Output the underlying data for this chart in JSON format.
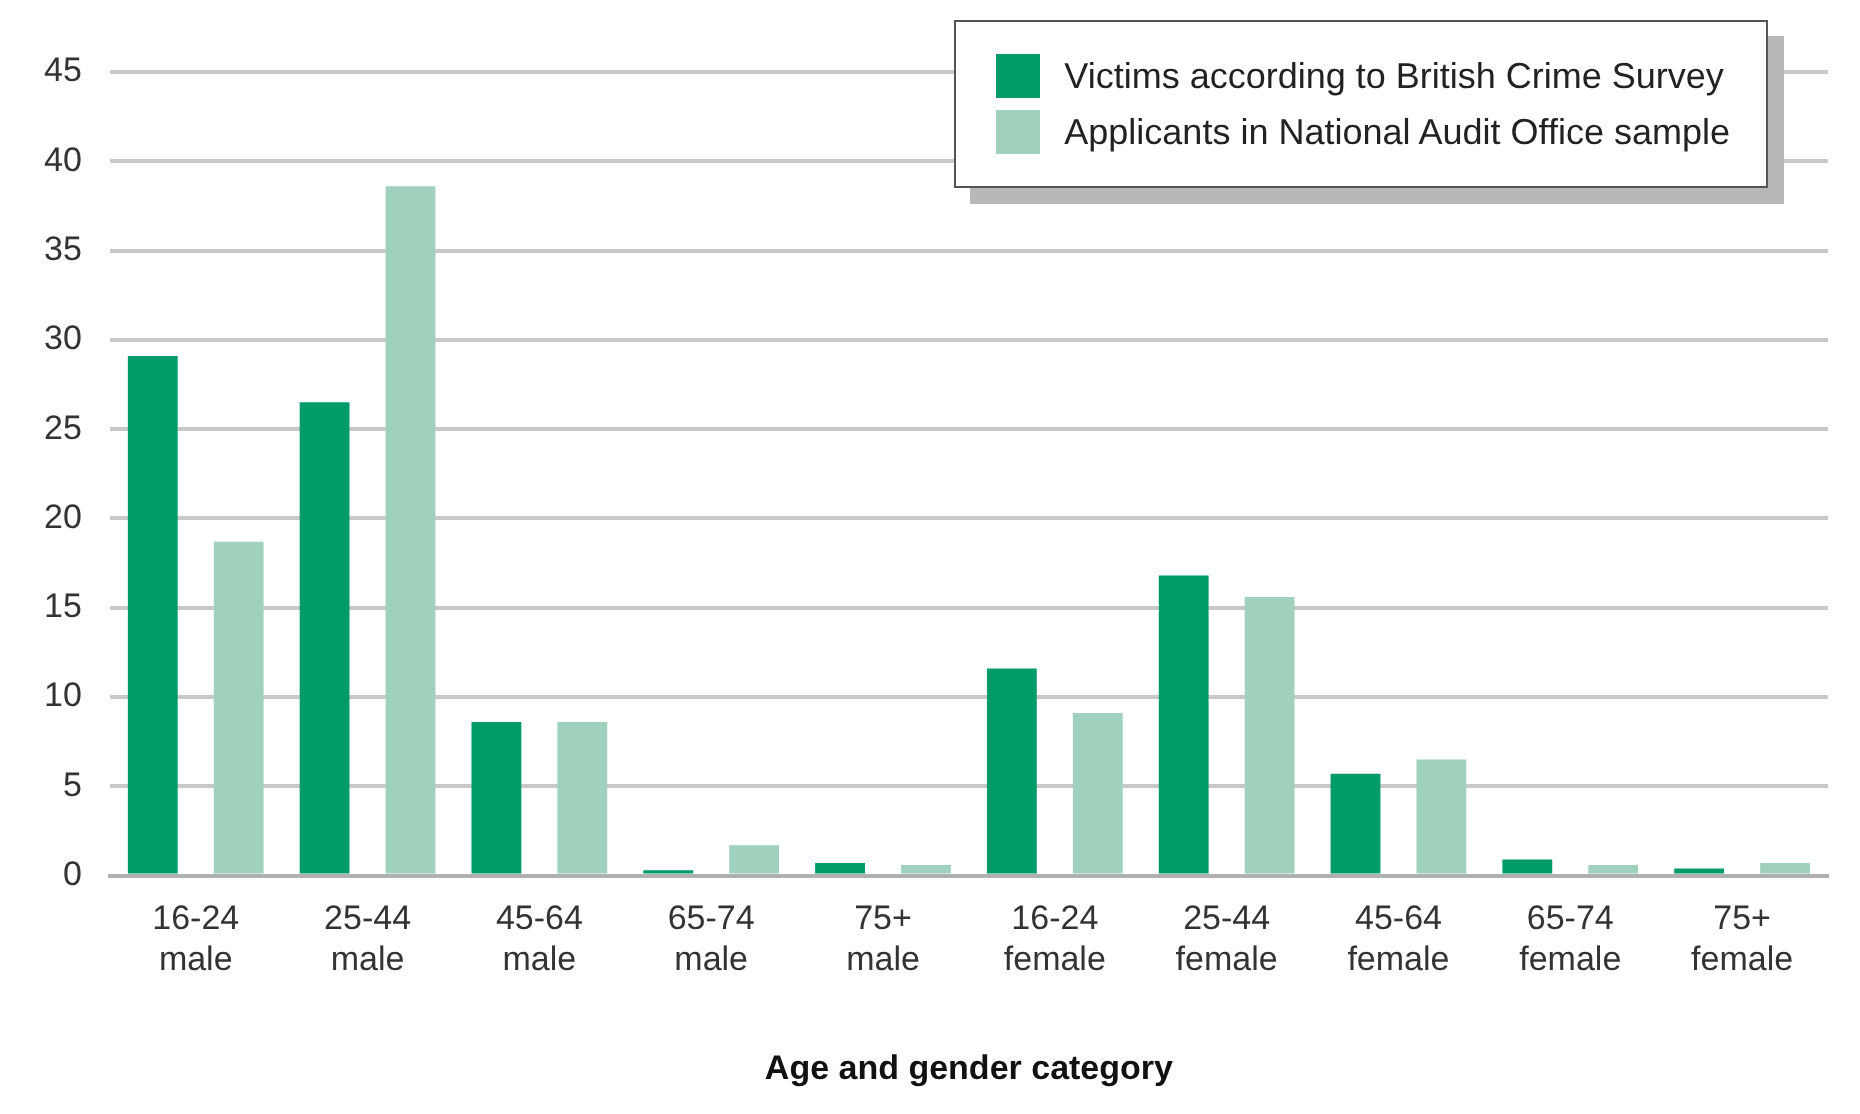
{
  "chart_data": {
    "type": "bar",
    "xlabel": "Age and gender category",
    "categories": [
      "16-24 male",
      "25-44 male",
      "45-64 male",
      "65-74 male",
      "75+ male",
      "16-24 female",
      "25-44 female",
      "45-64 female",
      "65-74 female",
      "75+ female"
    ],
    "series": [
      {
        "name": "Victims according to British Crime Survey",
        "color": "#009b69",
        "values": [
          29.1,
          26.5,
          8.6,
          0.3,
          0.7,
          11.6,
          16.8,
          5.7,
          0.9,
          0.4
        ]
      },
      {
        "name": "Applicants in National Audit Office sample",
        "color": "#a0d1bd",
        "values": [
          18.7,
          38.6,
          8.6,
          1.7,
          0.6,
          9.1,
          15.6,
          6.5,
          0.6,
          0.7
        ]
      }
    ],
    "ylim": [
      0,
      45
    ],
    "yticks": [
      0,
      5,
      10,
      15,
      20,
      25,
      30,
      35,
      40,
      45
    ],
    "grid": "y",
    "legend": "top right"
  }
}
